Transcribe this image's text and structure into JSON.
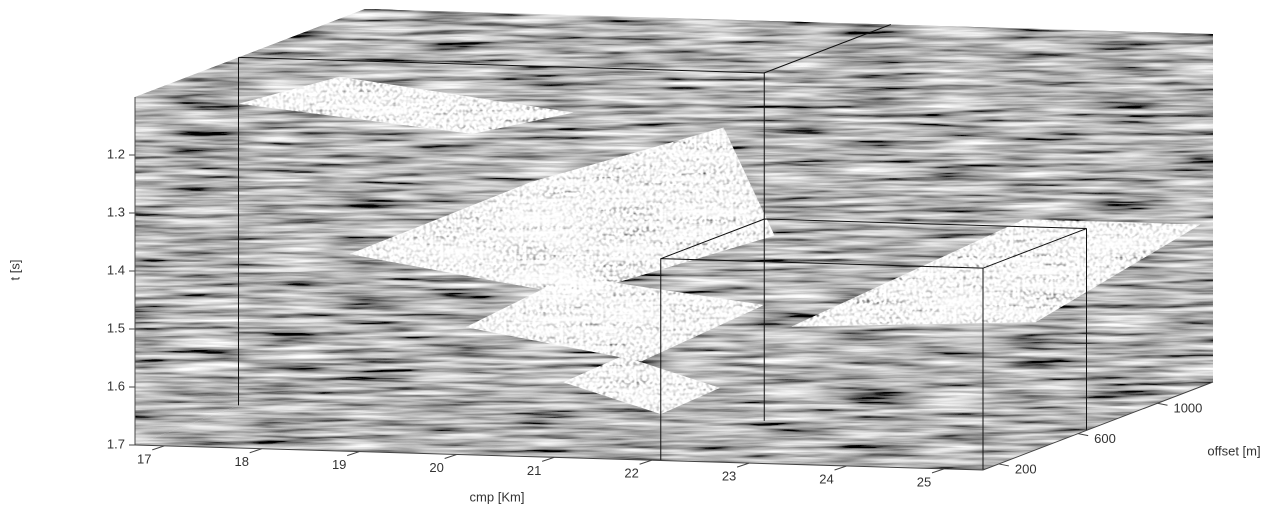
{
  "chart_data": {
    "type": "volume3d",
    "xlabel": "cmp [Km]",
    "ylabel": "offset [m]",
    "zlabel": "t [s]",
    "xlim": [
      16.7,
      25.4
    ],
    "xticks": [
      17,
      18,
      19,
      20,
      21,
      22,
      23,
      24,
      25
    ],
    "ylim": [
      120,
      1280
    ],
    "yticks": [
      200,
      600,
      1000
    ],
    "zlim": [
      1.1,
      1.7
    ],
    "zticks": [
      1.2,
      1.3,
      1.4,
      1.5,
      1.6,
      1.7
    ]
  }
}
